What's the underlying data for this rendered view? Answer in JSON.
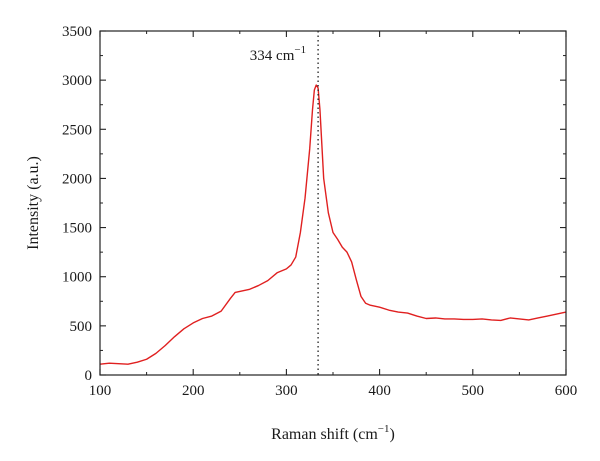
{
  "chart_data": {
    "type": "line",
    "title": "",
    "xlabel": "Raman shift (cm",
    "xlabel_sup": "−1",
    "xlabel_close": ")",
    "ylabel": "Intensity (a.u.)",
    "xlim": [
      100,
      600
    ],
    "ylim": [
      0,
      3500
    ],
    "xticks": [
      "100",
      "200",
      "300",
      "400",
      "500",
      "600"
    ],
    "yticks": [
      "0",
      "500",
      "1000",
      "1500",
      "2000",
      "2500",
      "3000",
      "3500"
    ],
    "grid": false,
    "legend": "none",
    "line_color": "#e02020",
    "marker_line": {
      "x": 334,
      "label": "334 cm",
      "label_sup": "−1",
      "style": "dotted"
    },
    "series": [
      {
        "x": [
          100,
          110,
          120,
          130,
          140,
          150,
          160,
          170,
          180,
          190,
          200,
          210,
          220,
          230,
          240,
          245,
          250,
          260,
          270,
          280,
          290,
          300,
          305,
          310,
          315,
          320,
          325,
          328,
          330,
          332,
          334,
          336,
          338,
          340,
          345,
          350,
          355,
          360,
          365,
          370,
          375,
          380,
          385,
          390,
          400,
          410,
          420,
          430,
          440,
          450,
          460,
          470,
          480,
          490,
          500,
          510,
          520,
          530,
          540,
          550,
          560,
          570,
          580,
          590,
          600
        ],
        "values": [
          110,
          120,
          115,
          110,
          130,
          160,
          220,
          300,
          390,
          470,
          530,
          575,
          600,
          650,
          780,
          840,
          850,
          870,
          910,
          960,
          1040,
          1080,
          1120,
          1200,
          1450,
          1800,
          2300,
          2700,
          2900,
          2950,
          2920,
          2700,
          2350,
          2000,
          1650,
          1450,
          1380,
          1300,
          1250,
          1150,
          970,
          800,
          730,
          710,
          690,
          660,
          640,
          630,
          600,
          575,
          580,
          570,
          570,
          565,
          565,
          570,
          560,
          555,
          580,
          570,
          560,
          580,
          600,
          620,
          640
        ]
      }
    ]
  }
}
